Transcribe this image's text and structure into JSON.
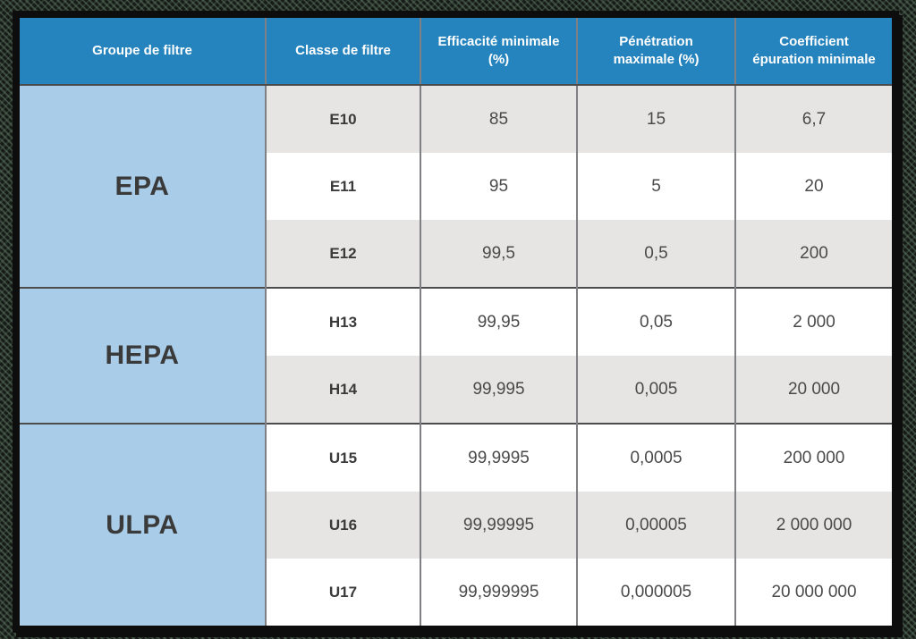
{
  "colors": {
    "page_background": "#161b17",
    "header_background": "#2583bd",
    "header_text": "#ffffff",
    "group_background": "#a9cce9",
    "row_shade": "#e6e5e3",
    "row_plain": "#ffffff",
    "grid_line": "#7e8084",
    "group_line": "#4c4c4c",
    "frame_border": "#0d0d0d",
    "body_text": "#4a4a4a",
    "label_text": "#3a3a3a"
  },
  "table": {
    "columns": [
      "Groupe de filtre",
      "Classe de filtre",
      "Efficacité minimale (%)",
      "Pénétration maximale (%)",
      "Coefficient épuration minimale"
    ],
    "groups": [
      {
        "name": "EPA",
        "rows": [
          {
            "classe": "E10",
            "efficacite": "85",
            "penetration": "15",
            "coefficient": "6,7"
          },
          {
            "classe": "E11",
            "efficacite": "95",
            "penetration": "5",
            "coefficient": "20"
          },
          {
            "classe": "E12",
            "efficacite": "99,5",
            "penetration": "0,5",
            "coefficient": "200"
          }
        ]
      },
      {
        "name": "HEPA",
        "rows": [
          {
            "classe": "H13",
            "efficacite": "99,95",
            "penetration": "0,05",
            "coefficient": "2 000"
          },
          {
            "classe": "H14",
            "efficacite": "99,995",
            "penetration": "0,005",
            "coefficient": "20 000"
          }
        ]
      },
      {
        "name": "ULPA",
        "rows": [
          {
            "classe": "U15",
            "efficacite": "99,9995",
            "penetration": "0,0005",
            "coefficient": "200 000"
          },
          {
            "classe": "U16",
            "efficacite": "99,99995",
            "penetration": "0,00005",
            "coefficient": "2 000 000"
          },
          {
            "classe": "U17",
            "efficacite": "99,999995",
            "penetration": "0,000005",
            "coefficient": "20 000 000"
          }
        ]
      }
    ]
  },
  "chart_data": {
    "type": "table",
    "title": "",
    "columns": [
      "Groupe de filtre",
      "Classe de filtre",
      "Efficacité minimale (%)",
      "Pénétration maximale (%)",
      "Coefficient épuration minimale"
    ],
    "rows": [
      [
        "EPA",
        "E10",
        "85",
        "15",
        "6,7"
      ],
      [
        "EPA",
        "E11",
        "95",
        "5",
        "20"
      ],
      [
        "EPA",
        "E12",
        "99,5",
        "0,5",
        "200"
      ],
      [
        "HEPA",
        "H13",
        "99,95",
        "0,05",
        "2 000"
      ],
      [
        "HEPA",
        "H14",
        "99,995",
        "0,005",
        "20 000"
      ],
      [
        "ULPA",
        "U15",
        "99,9995",
        "0,0005",
        "200 000"
      ],
      [
        "ULPA",
        "U16",
        "99,99995",
        "0,00005",
        "2 000 000"
      ],
      [
        "ULPA",
        "U17",
        "99,999995",
        "0,000005",
        "20 000 000"
      ]
    ]
  }
}
